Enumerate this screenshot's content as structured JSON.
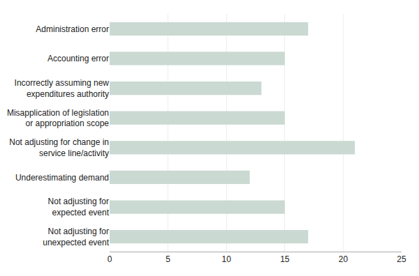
{
  "chart_data": {
    "type": "bar",
    "orientation": "horizontal",
    "categories": [
      "Administration error",
      "Accounting error",
      "Incorrectly assuming new\nexpenditures authority",
      "Misapplication of legislation\nor appropriation scope",
      "Not adjusting for change in\nservice line/activity",
      "Underestimating demand",
      "Not adjusting for\nexpected event",
      "Not adjusting for\nunexpected event"
    ],
    "values": [
      17,
      15,
      13,
      15,
      21,
      12,
      15,
      17
    ],
    "color": "#cad9d2",
    "xlim": [
      0,
      25
    ],
    "xticks": [
      0,
      5,
      10,
      15,
      20,
      25
    ],
    "grid": true
  }
}
